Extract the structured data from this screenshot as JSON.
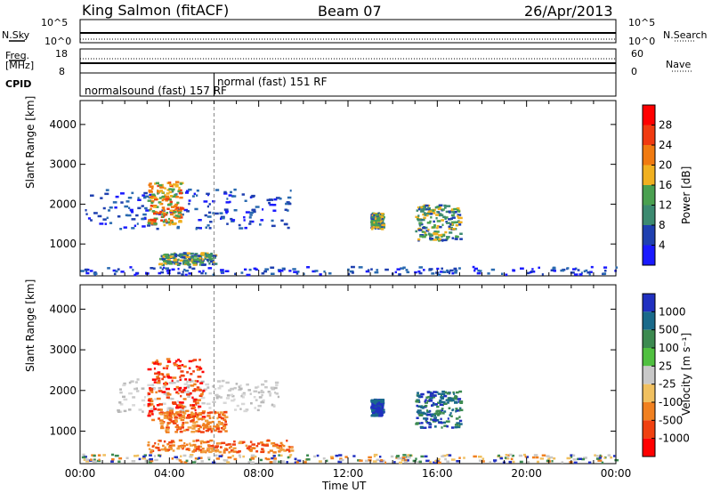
{
  "header": {
    "station": "King Salmon (fitACF)",
    "beam": "Beam 07",
    "date": "26/Apr/2013"
  },
  "strip_panels": {
    "nsky_label": "N.Sky",
    "nsky_ticks": [
      "10^5",
      "10^0"
    ],
    "nsearch_label": "N.Search",
    "nsearch_ticks": [
      "10^5",
      "10^0"
    ],
    "freq_label_1": "Freq.",
    "freq_label_2": "[MHz]",
    "freq_ticks": [
      "18",
      "8"
    ],
    "nave_label": "Nave",
    "nave_ticks": [
      "60",
      "0"
    ],
    "cpid_label": "CPID",
    "cpid_modes": [
      {
        "name": "normalsound (fast) 157 RF",
        "start_hour": 0.0
      },
      {
        "name": "normal (fast) 151 RF",
        "start_hour": 6.0
      }
    ]
  },
  "chart_data": [
    {
      "type": "heatmap",
      "name": "power",
      "ylabel": "Slant Range [km]",
      "yticks": [
        "1000",
        "2000",
        "3000",
        "4000"
      ],
      "ylim": [
        200,
        4600
      ],
      "xlim": [
        0,
        24
      ],
      "colorbar_label": "Power [dB]",
      "colorbar_ticks": [
        "4",
        "8",
        "12",
        "16",
        "20",
        "24",
        "28"
      ],
      "colorbar_colors": [
        "#1a1aff",
        "#1f40b0",
        "#3c8a70",
        "#4aa050",
        "#f0b020",
        "#f07a10",
        "#f03a10",
        "#ff0000"
      ],
      "patches": [
        {
          "t0": 0.2,
          "t1": 9.5,
          "r0": 1400,
          "r1": 2400,
          "level": "low"
        },
        {
          "t0": 3.0,
          "t1": 4.5,
          "r0": 1500,
          "r1": 2600,
          "level": "high"
        },
        {
          "t0": 3.5,
          "t1": 6.0,
          "r0": 500,
          "r1": 800,
          "level": "mid"
        },
        {
          "t0": 13.0,
          "t1": 13.5,
          "r0": 1400,
          "r1": 1800,
          "level": "mid"
        },
        {
          "t0": 15.0,
          "t1": 17.0,
          "r0": 1100,
          "r1": 2000,
          "level": "mid"
        },
        {
          "t0": 0.0,
          "t1": 24.0,
          "r0": 250,
          "r1": 450,
          "level": "low"
        }
      ]
    },
    {
      "type": "heatmap",
      "name": "velocity",
      "ylabel": "Slant Range [km]",
      "xlabel": "Time UT",
      "xticks": [
        "00:00",
        "04:00",
        "08:00",
        "12:00",
        "16:00",
        "20:00",
        "00:00"
      ],
      "yticks": [
        "1000",
        "2000",
        "3000",
        "4000"
      ],
      "ylim": [
        200,
        4600
      ],
      "xlim": [
        0,
        24
      ],
      "colorbar_label": "Velocity [m s⁻¹]",
      "colorbar_ticks": [
        "1000",
        "500",
        "100",
        "25",
        "-25",
        "-100",
        "-500",
        "-1000"
      ],
      "colorbar_colors": [
        "#2030c0",
        "#1a6a8a",
        "#3c8a50",
        "#50c040",
        "#c8c8c8",
        "#f0c060",
        "#f08020",
        "#f04010",
        "#ff0000"
      ],
      "patches": [
        {
          "t0": 1.5,
          "t1": 9.0,
          "r0": 1500,
          "r1": 2300,
          "level": "gray"
        },
        {
          "t0": 3.0,
          "t1": 5.5,
          "r0": 1300,
          "r1": 2800,
          "level": "red"
        },
        {
          "t0": 3.5,
          "t1": 6.5,
          "r0": 1000,
          "r1": 1500,
          "level": "orange"
        },
        {
          "t0": 3.0,
          "t1": 9.5,
          "r0": 500,
          "r1": 800,
          "level": "orange"
        },
        {
          "t0": 13.0,
          "t1": 13.5,
          "r0": 1400,
          "r1": 1800,
          "level": "blue"
        },
        {
          "t0": 15.0,
          "t1": 17.0,
          "r0": 1100,
          "r1": 2000,
          "level": "teal"
        },
        {
          "t0": 0.0,
          "t1": 24.0,
          "r0": 250,
          "r1": 450,
          "level": "mixed"
        }
      ]
    }
  ],
  "colors": {
    "cpid_boundary": "#888888"
  }
}
